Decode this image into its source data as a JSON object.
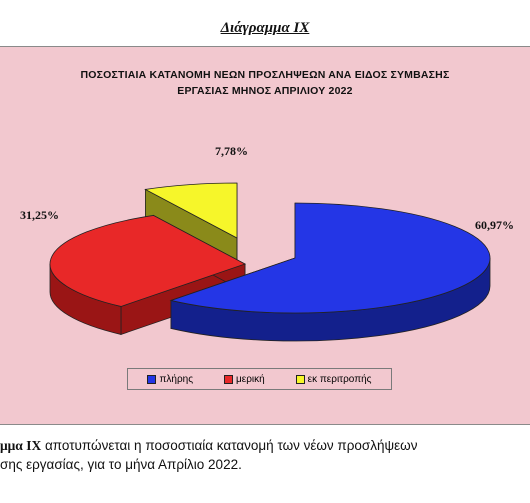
{
  "heading": "Διάγραμμα IX",
  "chart_data": {
    "type": "pie",
    "title_line1": "ΠΟΣΟΣΤΙΑΙΑ  ΚΑΤΑΝΟΜΗ  ΝΕΩΝ  ΠΡΟΣΛΗΨΕΩΝ ΑΝΑ ΕΙΔΟΣ ΣΥΜΒΑΣΗΣ",
    "title_line2": "ΕΡΓΑΣΙΑΣ ΜΗΝΟΣ  ΑΠΡΙΛΙΟΥ 2022",
    "slices": [
      {
        "name": "πλήρης",
        "value": 60.97,
        "label": "60,97%",
        "color": "#2436e6",
        "side": "#13208c"
      },
      {
        "name": "μερική",
        "value": 31.25,
        "label": "31,25%",
        "color": "#e82828",
        "side": "#9a1515"
      },
      {
        "name": "εκ περιτροπής",
        "value": 7.78,
        "label": "7,78%",
        "color": "#f6f62a",
        "side": "#8a8a1a"
      }
    ],
    "legend_position": "bottom"
  },
  "caption": {
    "bold": "μμα  IX",
    "line1": " αποτυπώνεται η ποσοστιαία κατανομή των νέων προσλήψεων",
    "line2": "σης εργασίας,  για το μήνα Απρίλιο 2022."
  }
}
